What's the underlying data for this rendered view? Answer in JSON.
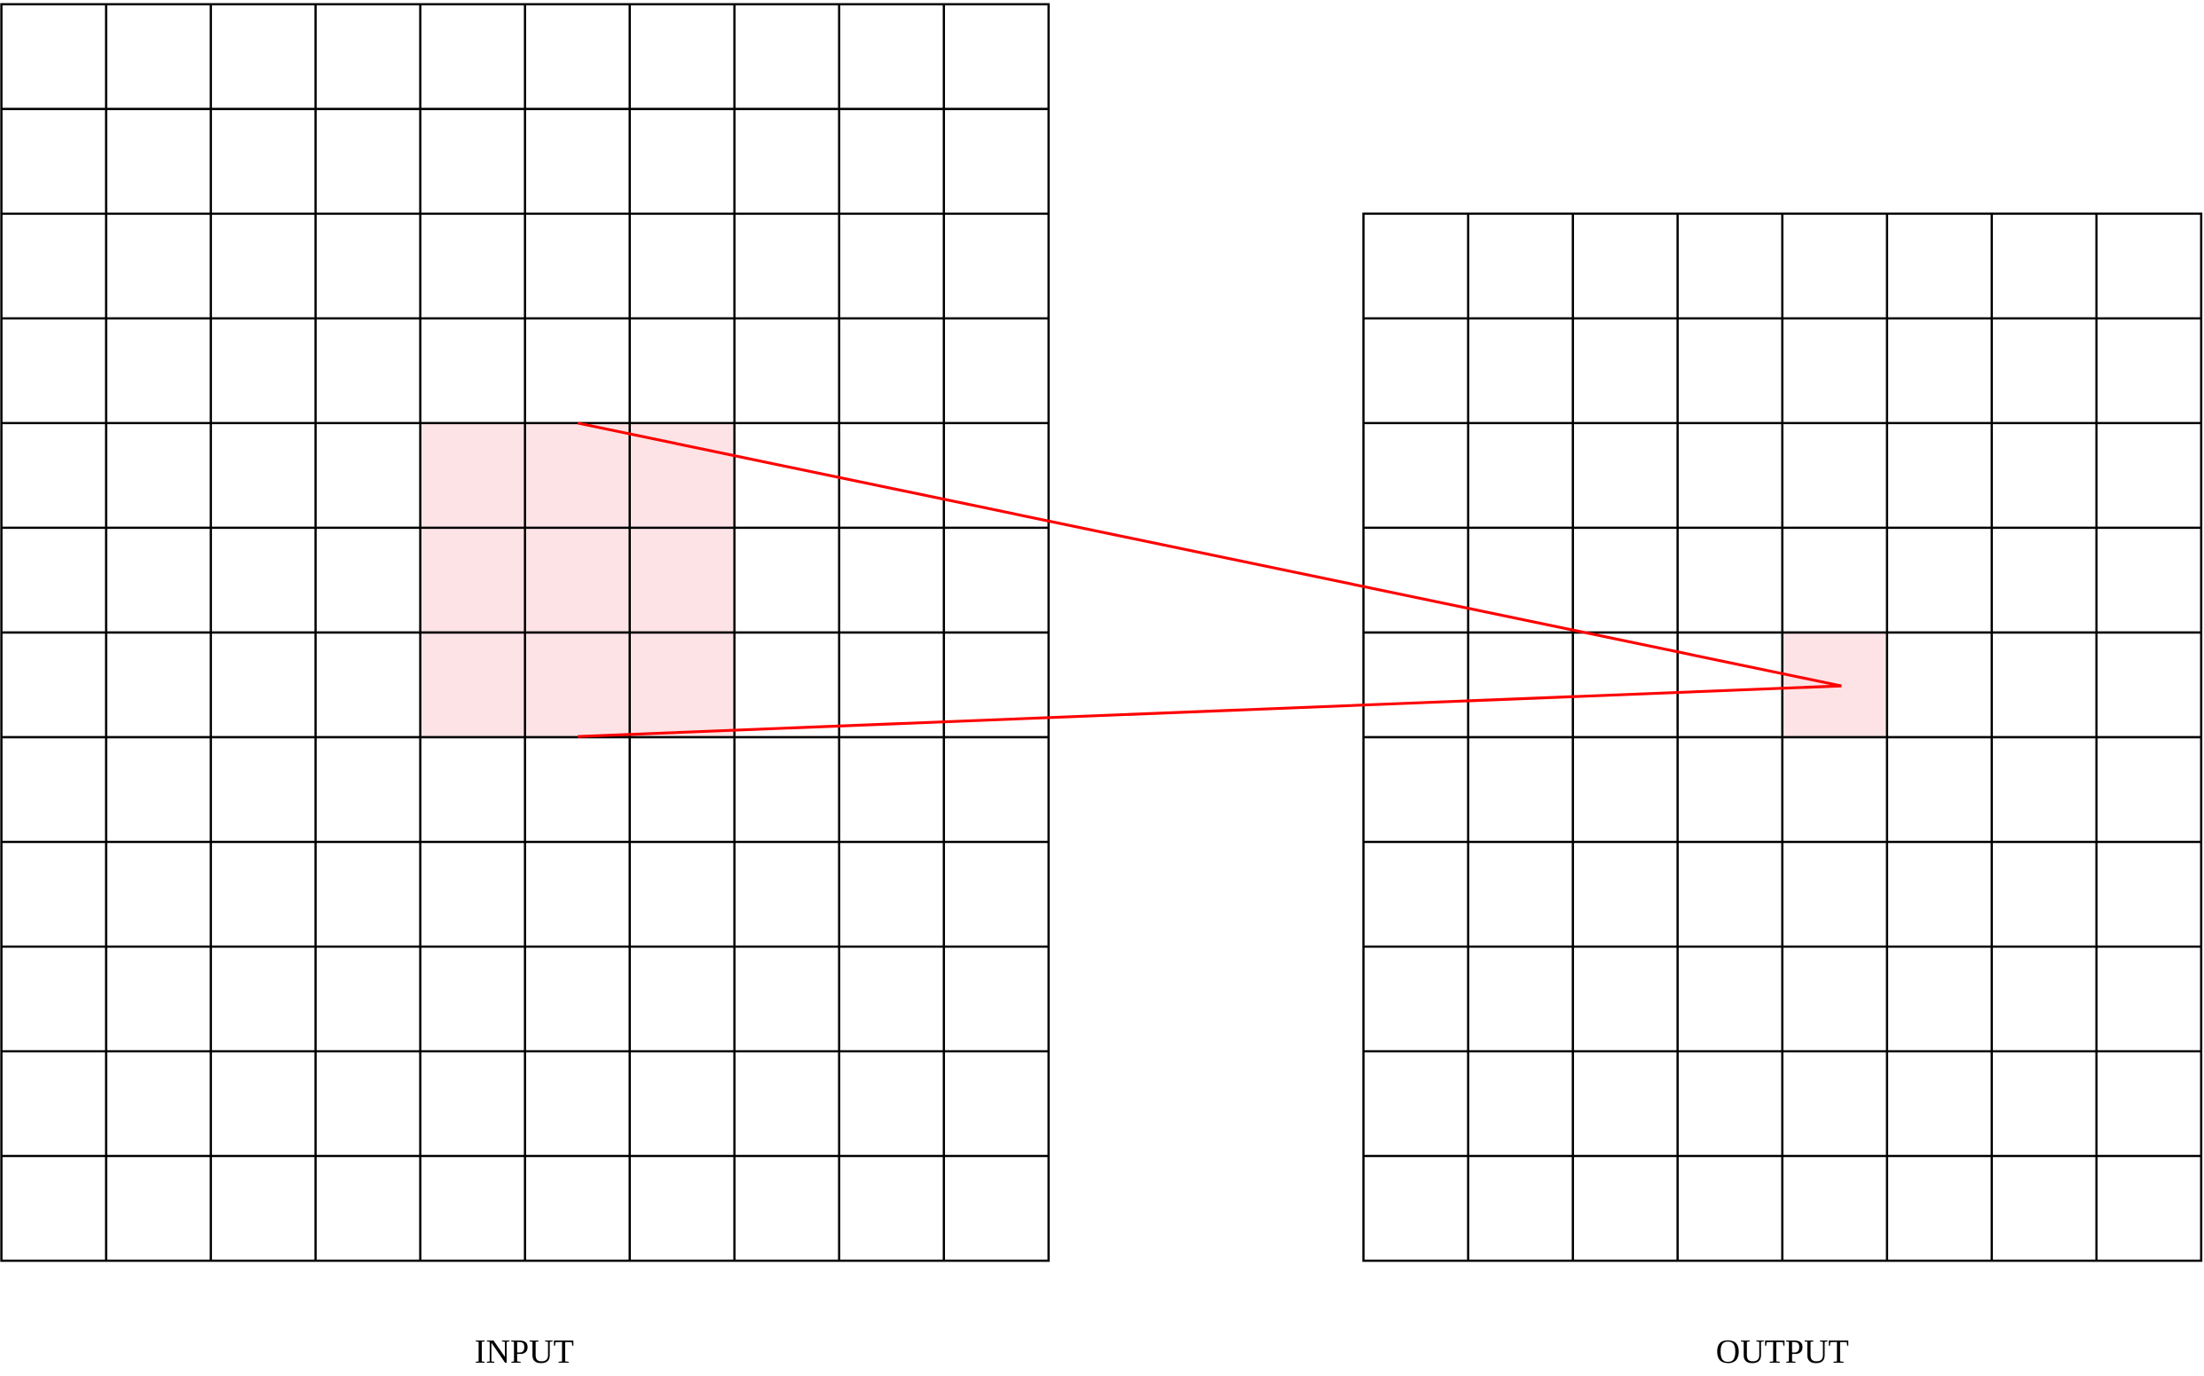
{
  "labels": {
    "input": "INPUT",
    "output": "OUTPUT"
  }
}
